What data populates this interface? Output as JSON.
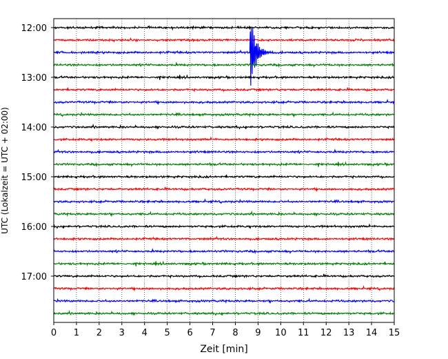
{
  "chart_data": {
    "type": "line",
    "title": "",
    "xlabel": "Zeit  [min]",
    "ylabel": "UTC (Lokalzeit = UTC + 02:00)",
    "xlim": [
      0,
      15
    ],
    "x_ticks": [
      0,
      1,
      2,
      3,
      4,
      5,
      6,
      7,
      8,
      9,
      10,
      11,
      12,
      13,
      14,
      15
    ],
    "y_ticks": [
      "12:00",
      "13:00",
      "14:00",
      "15:00",
      "16:00",
      "17:00"
    ],
    "grid": "vertical dotted",
    "trace_interval_min": 15,
    "trace_start": "12:00",
    "trace_count": 24,
    "trace_colors": [
      "#000000",
      "#ff0000",
      "#0000ff",
      "#008000"
    ],
    "event": {
      "trace_start": "12:30",
      "minute": 8.7,
      "relative_amplitude": 22
    }
  }
}
